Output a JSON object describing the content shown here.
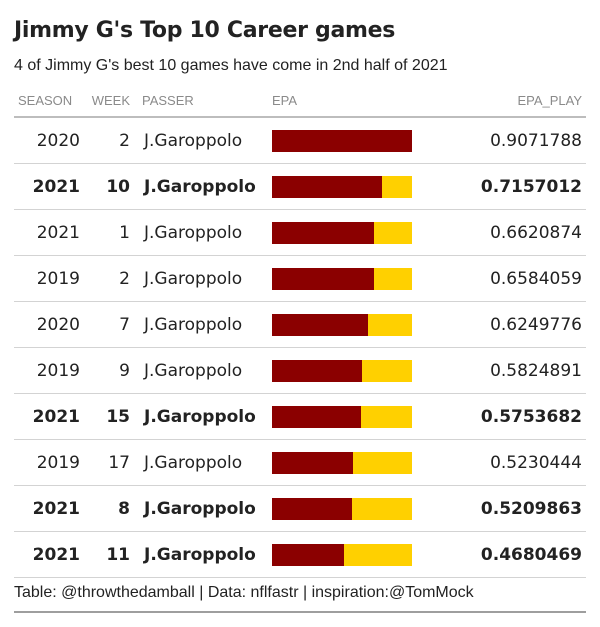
{
  "title": "Jimmy G's Top 10 Career games",
  "subtitle": "4 of Jimmy G's best 10 games have come in 2nd half of 2021",
  "columns": {
    "season": "SEASON",
    "week": "WEEK",
    "passer": "PASSER",
    "epa": "EPA",
    "epa_play": "EPA_PLAY"
  },
  "footer": "Table: @throwthedamball | Data: nflfastr | inspiration:@TomMock",
  "colors": {
    "bar_fill": "#8b0000",
    "bar_remainder": "#ffd000"
  },
  "chart_data": {
    "type": "table",
    "title": "Jimmy G's Top 10 Career games",
    "bar_scale_max": 0.9071788,
    "rows": [
      {
        "season": "2020",
        "week": "2",
        "passer": "J.Garoppolo",
        "epa_play": "0.9071788",
        "value": 0.9071788,
        "bold": false
      },
      {
        "season": "2021",
        "week": "10",
        "passer": "J.Garoppolo",
        "epa_play": "0.7157012",
        "value": 0.7157012,
        "bold": true
      },
      {
        "season": "2021",
        "week": "1",
        "passer": "J.Garoppolo",
        "epa_play": "0.6620874",
        "value": 0.6620874,
        "bold": false
      },
      {
        "season": "2019",
        "week": "2",
        "passer": "J.Garoppolo",
        "epa_play": "0.6584059",
        "value": 0.6584059,
        "bold": false
      },
      {
        "season": "2020",
        "week": "7",
        "passer": "J.Garoppolo",
        "epa_play": "0.6249776",
        "value": 0.6249776,
        "bold": false
      },
      {
        "season": "2019",
        "week": "9",
        "passer": "J.Garoppolo",
        "epa_play": "0.5824891",
        "value": 0.5824891,
        "bold": false
      },
      {
        "season": "2021",
        "week": "15",
        "passer": "J.Garoppolo",
        "epa_play": "0.5753682",
        "value": 0.5753682,
        "bold": true
      },
      {
        "season": "2019",
        "week": "17",
        "passer": "J.Garoppolo",
        "epa_play": "0.5230444",
        "value": 0.5230444,
        "bold": false
      },
      {
        "season": "2021",
        "week": "8",
        "passer": "J.Garoppolo",
        "epa_play": "0.5209863",
        "value": 0.5209863,
        "bold": true
      },
      {
        "season": "2021",
        "week": "11",
        "passer": "J.Garoppolo",
        "epa_play": "0.4680469",
        "value": 0.4680469,
        "bold": true
      }
    ]
  }
}
